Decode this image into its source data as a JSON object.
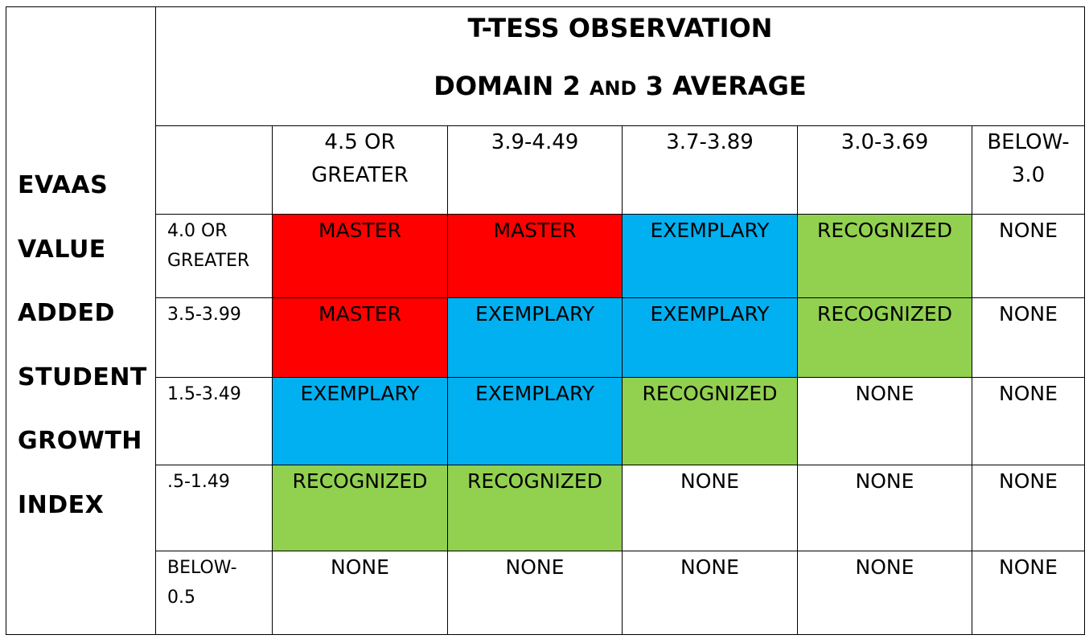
{
  "side_label": {
    "words": [
      "EVAAS",
      "VALUE",
      "ADDED",
      "STUDENT",
      "GROWTH",
      "INDEX"
    ]
  },
  "title": {
    "line1": "T-TESS OBSERVATION",
    "line2_a": "DOMAIN 2 ",
    "line2_small": "AND",
    "line2_b": " 3 AVERAGE"
  },
  "columns": [
    "4.5 OR GREATER",
    "3.9-4.49",
    "3.7-3.89",
    "3.0-3.69",
    "BELOW-3.0"
  ],
  "column_display": [
    [
      "4.5 OR",
      "GREATER"
    ],
    [
      "3.9-4.49"
    ],
    [
      "3.7-3.89"
    ],
    [
      "3.0-3.69"
    ],
    [
      "BELOW-",
      "3.0"
    ]
  ],
  "rows": [
    {
      "label_lines": [
        "4.0 OR",
        "GREATER"
      ],
      "cells": [
        "MASTER",
        "MASTER",
        "EXEMPLARY",
        "RECOGNIZED",
        "NONE"
      ]
    },
    {
      "label_lines": [
        "3.5-3.99"
      ],
      "cells": [
        "MASTER",
        "EXEMPLARY",
        "EXEMPLARY",
        "RECOGNIZED",
        "NONE"
      ]
    },
    {
      "label_lines": [
        "1.5-3.49"
      ],
      "cells": [
        "EXEMPLARY",
        "EXEMPLARY",
        "RECOGNIZED",
        "NONE",
        "NONE"
      ]
    },
    {
      "label_lines": [
        ".5-1.49"
      ],
      "cells": [
        "RECOGNIZED",
        "RECOGNIZED",
        "NONE",
        "NONE",
        "NONE"
      ]
    },
    {
      "label_lines": [
        "BELOW-",
        "0.5"
      ],
      "cells": [
        "NONE",
        "NONE",
        "NONE",
        "NONE",
        "NONE"
      ]
    }
  ],
  "level_colors": {
    "MASTER": "#ff0000",
    "EXEMPLARY": "#00b0f0",
    "RECOGNIZED": "#92d050",
    "NONE": "#ffffff"
  }
}
